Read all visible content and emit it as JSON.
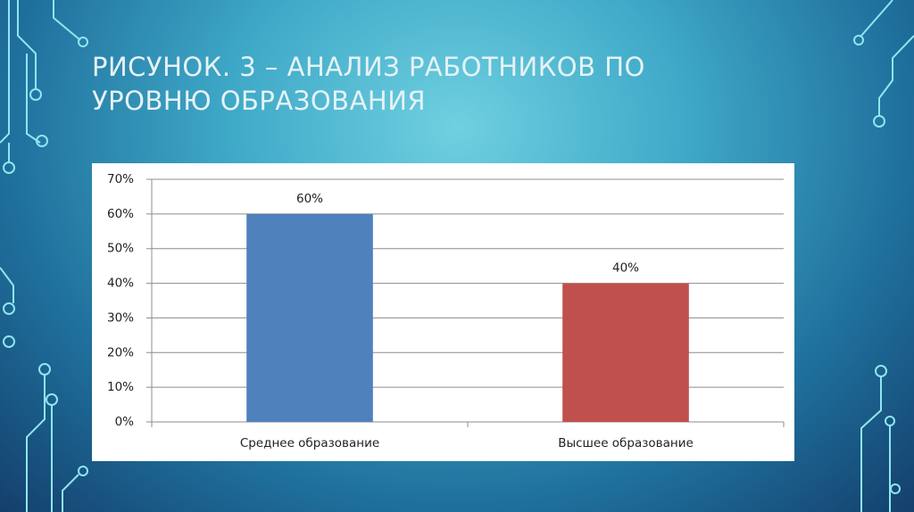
{
  "chart_data": {
    "type": "bar",
    "title": "РИСУНОК. 3 – АНАЛИЗ РАБОТНИКОВ ПО УРОВНЮ ОБРАЗОВАНИЯ",
    "categories": [
      "Среднее образование",
      "Высшее образование"
    ],
    "values": [
      60,
      40
    ],
    "value_labels": [
      "60%",
      "40%"
    ],
    "colors": [
      "#4f81bd",
      "#c0504d"
    ],
    "ylim": [
      0,
      70
    ],
    "yticks": [
      {
        "value": 0,
        "label": "0%"
      },
      {
        "value": 10,
        "label": "10%"
      },
      {
        "value": 20,
        "label": "20%"
      },
      {
        "value": 30,
        "label": "30%"
      },
      {
        "value": 40,
        "label": "40%"
      },
      {
        "value": 50,
        "label": "50%"
      },
      {
        "value": 60,
        "label": "60%"
      },
      {
        "value": 70,
        "label": "70%"
      }
    ],
    "grid": true
  }
}
